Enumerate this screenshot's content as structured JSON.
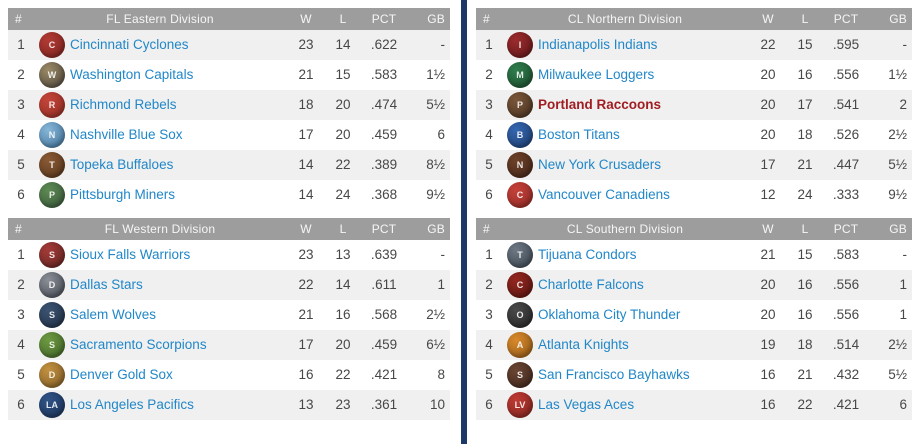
{
  "colors": {
    "header_bg": "#9d9d9d",
    "header_text": "#f6f6f6",
    "row_alt_bg": "#f0f0f0",
    "row_bg": "#ffffff",
    "team_link": "#2187c8",
    "user_team": "#a01d22",
    "numbers": "#474747",
    "divider": "#1c3868"
  },
  "columns": {
    "rank": "#",
    "w": "W",
    "l": "L",
    "pct": "PCT",
    "gb": "GB"
  },
  "tables": [
    {
      "division": "FL Eastern Division",
      "alt_parity": 0,
      "teams": [
        {
          "rank": "1",
          "name": "Cincinnati Cyclones",
          "w": "23",
          "l": "14",
          "pct": ".622",
          "gb": "-",
          "highlight": false,
          "logo": {
            "initials": "C",
            "c1": "#b23b34",
            "c2": "#7a221e"
          }
        },
        {
          "rank": "2",
          "name": "Washington Capitals",
          "w": "21",
          "l": "15",
          "pct": ".583",
          "gb": "1½",
          "highlight": false,
          "logo": {
            "initials": "W",
            "c1": "#9a8a66",
            "c2": "#4a4238"
          }
        },
        {
          "rank": "3",
          "name": "Richmond Rebels",
          "w": "18",
          "l": "20",
          "pct": ".474",
          "gb": "5½",
          "highlight": false,
          "logo": {
            "initials": "R",
            "c1": "#c44539",
            "c2": "#8e2c24"
          }
        },
        {
          "rank": "4",
          "name": "Nashville Blue Sox",
          "w": "17",
          "l": "20",
          "pct": ".459",
          "gb": "6",
          "highlight": false,
          "logo": {
            "initials": "N",
            "c1": "#86b7d8",
            "c2": "#3d6e96"
          }
        },
        {
          "rank": "5",
          "name": "Topeka Buffaloes",
          "w": "14",
          "l": "22",
          "pct": ".389",
          "gb": "8½",
          "highlight": false,
          "logo": {
            "initials": "T",
            "c1": "#8a5a34",
            "c2": "#54331c"
          }
        },
        {
          "rank": "6",
          "name": "Pittsburgh Miners",
          "w": "14",
          "l": "24",
          "pct": ".368",
          "gb": "9½",
          "highlight": false,
          "logo": {
            "initials": "P",
            "c1": "#5d8a52",
            "c2": "#37543a"
          }
        }
      ]
    },
    {
      "division": "FL Western Division",
      "alt_parity": 1,
      "teams": [
        {
          "rank": "1",
          "name": "Sioux Falls Warriors",
          "w": "23",
          "l": "13",
          "pct": ".639",
          "gb": "-",
          "highlight": false,
          "logo": {
            "initials": "S",
            "c1": "#a53b37",
            "c2": "#5d2420"
          }
        },
        {
          "rank": "2",
          "name": "Dallas Stars",
          "w": "22",
          "l": "14",
          "pct": ".611",
          "gb": "1",
          "highlight": false,
          "logo": {
            "initials": "D",
            "c1": "#8b8f98",
            "c2": "#3f444d"
          }
        },
        {
          "rank": "3",
          "name": "Salem Wolves",
          "w": "21",
          "l": "16",
          "pct": ".568",
          "gb": "2½",
          "highlight": false,
          "logo": {
            "initials": "S",
            "c1": "#3c5472",
            "c2": "#1f2e42"
          }
        },
        {
          "rank": "4",
          "name": "Sacramento Scorpions",
          "w": "17",
          "l": "20",
          "pct": ".459",
          "gb": "6½",
          "highlight": false,
          "logo": {
            "initials": "S",
            "c1": "#6d9a42",
            "c2": "#3f6126"
          }
        },
        {
          "rank": "5",
          "name": "Denver Gold Sox",
          "w": "16",
          "l": "22",
          "pct": ".421",
          "gb": "8",
          "highlight": false,
          "logo": {
            "initials": "D",
            "c1": "#c3913f",
            "c2": "#7c5a26"
          }
        },
        {
          "rank": "6",
          "name": "Los Angeles Pacifics",
          "w": "13",
          "l": "23",
          "pct": ".361",
          "gb": "10",
          "highlight": false,
          "logo": {
            "initials": "LA",
            "c1": "#2f5386",
            "c2": "#1b3156"
          }
        }
      ]
    },
    {
      "division": "CL Northern Division",
      "alt_parity": 0,
      "teams": [
        {
          "rank": "1",
          "name": "Indianapolis Indians",
          "w": "22",
          "l": "15",
          "pct": ".595",
          "gb": "-",
          "highlight": false,
          "logo": {
            "initials": "I",
            "c1": "#9c2b2d",
            "c2": "#5c1719"
          }
        },
        {
          "rank": "2",
          "name": "Milwaukee Loggers",
          "w": "20",
          "l": "16",
          "pct": ".556",
          "gb": "1½",
          "highlight": false,
          "logo": {
            "initials": "M",
            "c1": "#2f7d4c",
            "c2": "#1c4a2d"
          }
        },
        {
          "rank": "3",
          "name": "Portland Raccoons",
          "w": "20",
          "l": "17",
          "pct": ".541",
          "gb": "2",
          "highlight": true,
          "logo": {
            "initials": "P",
            "c1": "#7a5639",
            "c2": "#463020"
          }
        },
        {
          "rank": "4",
          "name": "Boston Titans",
          "w": "20",
          "l": "18",
          "pct": ".526",
          "gb": "2½",
          "highlight": false,
          "logo": {
            "initials": "B",
            "c1": "#3566b0",
            "c2": "#1d3c6b"
          }
        },
        {
          "rank": "5",
          "name": "New York Crusaders",
          "w": "17",
          "l": "21",
          "pct": ".447",
          "gb": "5½",
          "highlight": false,
          "logo": {
            "initials": "N",
            "c1": "#6e4129",
            "c2": "#402417"
          }
        },
        {
          "rank": "6",
          "name": "Vancouver Canadiens",
          "w": "12",
          "l": "24",
          "pct": ".333",
          "gb": "9½",
          "highlight": false,
          "logo": {
            "initials": "C",
            "c1": "#c6403a",
            "c2": "#8c2a25"
          }
        }
      ]
    },
    {
      "division": "CL Southern Division",
      "alt_parity": 1,
      "teams": [
        {
          "rank": "1",
          "name": "Tijuana Condors",
          "w": "21",
          "l": "15",
          "pct": ".583",
          "gb": "-",
          "highlight": false,
          "logo": {
            "initials": "T",
            "c1": "#6d7884",
            "c2": "#39424c"
          }
        },
        {
          "rank": "2",
          "name": "Charlotte Falcons",
          "w": "20",
          "l": "16",
          "pct": ".556",
          "gb": "1",
          "highlight": false,
          "logo": {
            "initials": "C",
            "c1": "#94271f",
            "c2": "#551511"
          }
        },
        {
          "rank": "3",
          "name": "Oklahoma City Thunder",
          "w": "20",
          "l": "16",
          "pct": ".556",
          "gb": "1",
          "highlight": false,
          "logo": {
            "initials": "O",
            "c1": "#4a4a4a",
            "c2": "#242424"
          }
        },
        {
          "rank": "4",
          "name": "Atlanta Knights",
          "w": "19",
          "l": "18",
          "pct": ".514",
          "gb": "2½",
          "highlight": false,
          "logo": {
            "initials": "A",
            "c1": "#d98a2b",
            "c2": "#8c5618"
          }
        },
        {
          "rank": "5",
          "name": "San Francisco Bayhawks",
          "w": "16",
          "l": "21",
          "pct": ".432",
          "gb": "5½",
          "highlight": false,
          "logo": {
            "initials": "S",
            "c1": "#6b4533",
            "c2": "#3c261c"
          }
        },
        {
          "rank": "6",
          "name": "Las Vegas Aces",
          "w": "16",
          "l": "22",
          "pct": ".421",
          "gb": "6",
          "highlight": false,
          "logo": {
            "initials": "LV",
            "c1": "#bf3a33",
            "c2": "#7c231e"
          }
        }
      ]
    }
  ]
}
